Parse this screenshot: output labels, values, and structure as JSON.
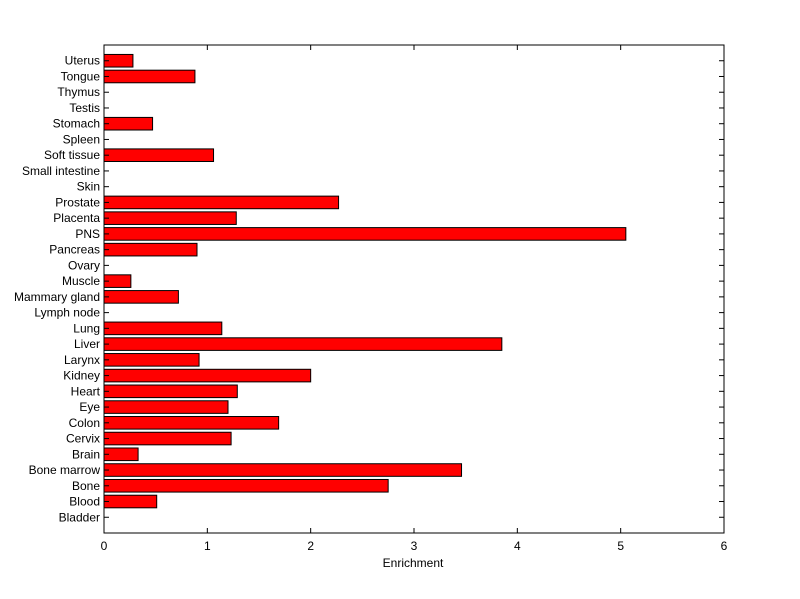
{
  "chart_data": {
    "type": "bar",
    "orientation": "horizontal",
    "categories": [
      "Bladder",
      "Blood",
      "Bone",
      "Bone marrow",
      "Brain",
      "Cervix",
      "Colon",
      "Eye",
      "Heart",
      "Kidney",
      "Larynx",
      "Liver",
      "Lung",
      "Lymph node",
      "Mammary gland",
      "Muscle",
      "Ovary",
      "Pancreas",
      "PNS",
      "Placenta",
      "Prostate",
      "Skin",
      "Small intestine",
      "Soft tissue",
      "Spleen",
      "Stomach",
      "Testis",
      "Thymus",
      "Tongue",
      "Uterus"
    ],
    "values": [
      0,
      0.51,
      2.75,
      3.46,
      0.33,
      1.23,
      1.69,
      1.2,
      1.29,
      2.0,
      0.92,
      3.85,
      1.14,
      0,
      0.72,
      0.26,
      0,
      0.9,
      5.05,
      1.28,
      2.27,
      0,
      0,
      1.06,
      0,
      0.47,
      0,
      0,
      0.88,
      0.28
    ],
    "title": "",
    "xlabel": "Enrichment",
    "ylabel": "",
    "xlim": [
      0,
      6
    ],
    "xticks": [
      "0",
      "1",
      "2",
      "3",
      "4",
      "5",
      "6"
    ],
    "grid": false,
    "legend": "none",
    "bar_color": "#ff0000",
    "edge_color": "#000000"
  }
}
